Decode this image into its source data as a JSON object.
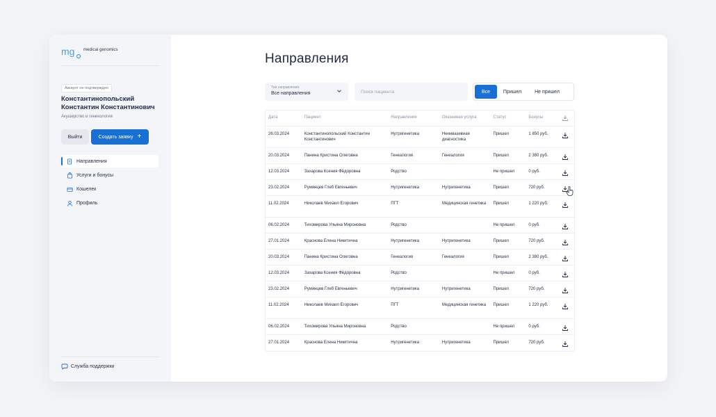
{
  "brand": {
    "name": "medical genomics",
    "logo_glyph": "mg"
  },
  "user": {
    "status_badge": "Аккаунт не подтвержден",
    "name": "Константинопольский Константин Константинович",
    "specialty": "Акушерство и гинекология"
  },
  "actions": {
    "exit": "Выйти",
    "create": "Создать заявку"
  },
  "nav": [
    {
      "label": "Направления",
      "icon": "document-icon",
      "active": true
    },
    {
      "label": "Услуги и бонусы",
      "icon": "bag-icon",
      "active": false
    },
    {
      "label": "Кошелек",
      "icon": "wallet-icon",
      "active": false
    },
    {
      "label": "Профиль",
      "icon": "user-icon",
      "active": false
    }
  ],
  "support": "Служба поддержки",
  "page_title": "Направления",
  "filters": {
    "type_label": "Тип направления",
    "type_value": "Все направления",
    "search_placeholder": "Поиск пациента",
    "segments": [
      "Все",
      "Пришел",
      "Не пришел"
    ],
    "active_segment": "Все"
  },
  "table": {
    "columns": [
      "Дата",
      "Пациент",
      "Направление",
      "Оказанная услуга",
      "Статус",
      "Бонусы"
    ],
    "rows": [
      [
        "26.03.2024",
        "Константинопольский Константин Константинович",
        "Нутригенетика",
        "Неинвазивная диагностика",
        "Пришел",
        "1 850 руб."
      ],
      [
        "20.03.2024",
        "Панина Кристина Олеговна",
        "Генеалогия",
        "Генеалогия",
        "Пришел",
        "2 380 руб."
      ],
      [
        "12.03.2024",
        "Захарова Ксения Фёдоровна",
        "Родство",
        "",
        "Не пришел",
        "0 руб."
      ],
      [
        "23.02.2024",
        "Румянцев Глеб Евгеньевич",
        "Нутригенетика",
        "Нутригенетика",
        "Пришел",
        "720 руб."
      ],
      [
        "11.02.2024",
        "Николаев Михаил Егорович",
        "ПГТ",
        "Медицинская генетика",
        "Пришел",
        "1 220 руб."
      ],
      [
        "06.02.2024",
        "Тихомирова Ульяна Мироновна",
        "Родство",
        "",
        "Не пришел",
        "0 руб."
      ],
      [
        "27.01.2024",
        "Краснова Елена Никитична",
        "Нутригенетика",
        "Нутригенетика",
        "Пришел",
        "720 руб."
      ],
      [
        "20.03.2024",
        "Панина Кристина Олеговна",
        "Генеалогия",
        "Генеалогия",
        "Пришел",
        "2 380 руб."
      ],
      [
        "12.03.2024",
        "Захарова Ксения Фёдоровна",
        "Родство",
        "",
        "Не пришел",
        "0 руб."
      ],
      [
        "23.02.2024",
        "Румянцев Глеб Евгеньевич",
        "Нутригенетика",
        "Нутригенетика",
        "Пришел",
        "720 руб."
      ],
      [
        "11.02.2024",
        "Николаев Михаил Егорович",
        "ПГТ",
        "Медицинская генетика",
        "Пришел",
        "1 220 руб."
      ],
      [
        "06.02.2024",
        "Тихомирова Ульяна Мироновна",
        "Родство",
        "",
        "Не пришел",
        "0 руб."
      ],
      [
        "27.01.2024",
        "Краснова Елена Никитична",
        "Нутригенетика",
        "Нутригенетика",
        "Пришел",
        "720 руб."
      ]
    ]
  },
  "colors": {
    "accent": "#1870d5",
    "sidebar_bg": "#f4f5f8",
    "page_bg": "#f3f4f7",
    "text": "#1f2a44"
  }
}
